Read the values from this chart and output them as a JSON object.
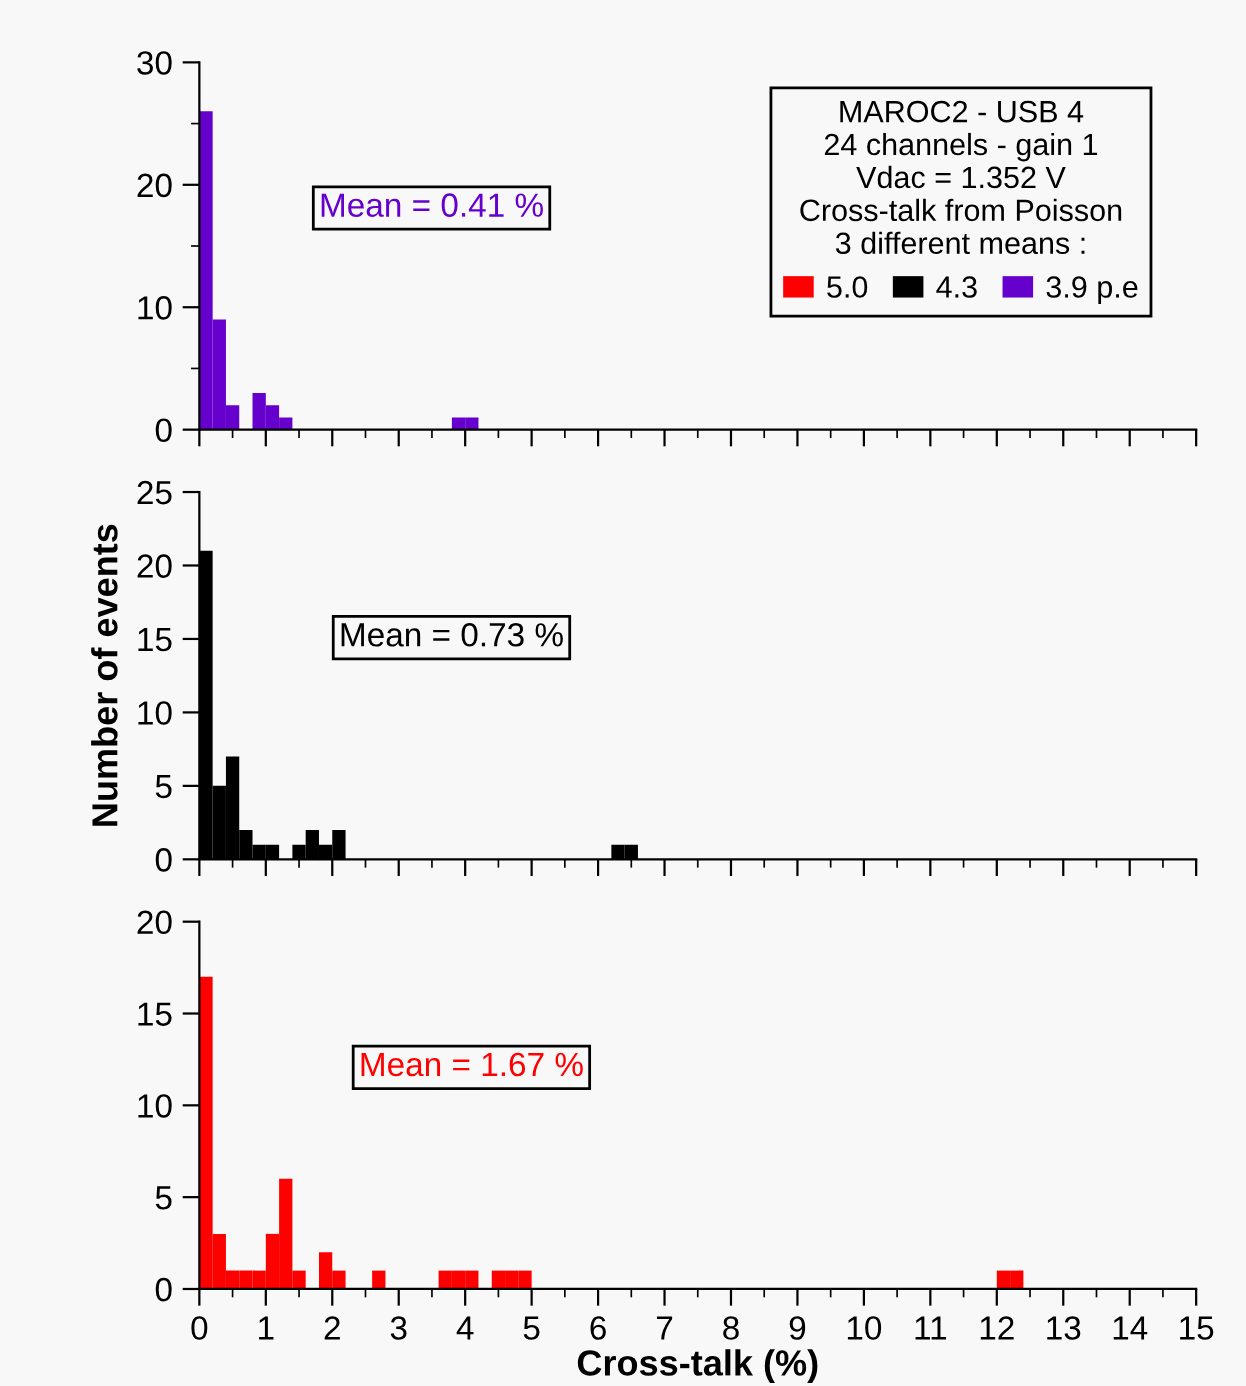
{
  "chart_data": [
    {
      "type": "histogram",
      "legend": "right",
      "legend_title": "MAROC2 - USB 4\n24 channels - gain 1\nVdac = 1.352 V\nCross-talk from Poisson\n3 different means :",
      "tick_labels": "y",
      "bins": [
        0,
        0.2,
        0.4,
        0.6,
        0.8,
        1,
        1.2,
        1.4,
        1.6,
        1.8,
        2,
        2.2,
        2.4,
        2.6,
        2.8,
        3,
        3.2,
        3.4,
        3.6,
        3.8,
        4,
        4.2,
        4.4,
        4.6,
        4.8,
        5,
        5.2,
        5.4,
        5.6,
        5.8,
        6,
        6.2,
        6.4,
        6.6,
        6.8,
        7,
        7.2,
        7.4,
        7.6,
        7.8,
        8,
        8.2,
        8.4,
        8.6,
        8.8,
        9,
        9.2,
        9.4,
        9.6,
        9.8,
        10,
        10.2,
        10.4,
        10.6,
        10.8,
        11,
        11.2,
        11.4,
        11.6,
        11.8,
        12,
        12.2,
        12.4,
        12.6,
        12.8,
        13,
        13.2,
        13.4,
        13.6,
        13.8,
        14,
        14.2,
        14.4,
        14.6,
        14.8,
        15
      ],
      "series": [
        {
          "name": "3.9 p.e",
          "color": "#6600cc",
          "values": [
            26,
            9,
            2,
            0,
            3,
            2,
            1,
            0,
            0,
            0,
            0,
            0,
            0,
            0,
            0,
            0,
            0,
            0,
            0,
            1,
            1,
            0,
            0,
            0,
            0,
            0,
            0,
            0,
            0,
            0,
            0,
            0,
            0,
            0,
            0,
            0,
            0,
            0,
            0,
            0,
            0,
            0,
            0,
            0,
            0,
            0,
            0,
            0,
            0,
            0,
            0,
            0,
            0,
            0,
            0,
            0,
            0,
            0,
            0,
            0,
            0,
            0,
            0,
            0,
            0,
            0,
            0,
            0,
            0,
            0,
            0,
            0,
            0,
            0,
            0
          ]
        }
      ],
      "annotations": [
        "Mean = 0.41 %"
      ],
      "xlim": [
        0,
        15
      ],
      "xticks": [
        0,
        1,
        2,
        3,
        4,
        5,
        6,
        7,
        8,
        9,
        10,
        11,
        12,
        13,
        14,
        15
      ],
      "ylim": [
        0,
        30
      ],
      "yticks": [
        0,
        {
          "value": 5,
          "label": null
        },
        10,
        {
          "value": 15,
          "label": null
        },
        20,
        {
          "value": 25,
          "label": null
        },
        30
      ]
    },
    {
      "type": "histogram",
      "ylabel": "Number of events",
      "tick_labels": "y",
      "bins": [
        0,
        0.2,
        0.4,
        0.6,
        0.8,
        1,
        1.2,
        1.4,
        1.6,
        1.8,
        2,
        2.2,
        2.4,
        2.6,
        2.8,
        3,
        3.2,
        3.4,
        3.6,
        3.8,
        4,
        4.2,
        4.4,
        4.6,
        4.8,
        5,
        5.2,
        5.4,
        5.6,
        5.8,
        6,
        6.2,
        6.4,
        6.6,
        6.8,
        7,
        7.2,
        7.4,
        7.6,
        7.8,
        8,
        8.2,
        8.4,
        8.6,
        8.8,
        9,
        9.2,
        9.4,
        9.6,
        9.8,
        10,
        10.2,
        10.4,
        10.6,
        10.8,
        11,
        11.2,
        11.4,
        11.6,
        11.8,
        12,
        12.2,
        12.4,
        12.6,
        12.8,
        13,
        13.2,
        13.4,
        13.6,
        13.8,
        14,
        14.2,
        14.4,
        14.6,
        14.8,
        15
      ],
      "series": [
        {
          "name": "4.3",
          "color": "#000000",
          "values": [
            21,
            5,
            7,
            2,
            1,
            1,
            0,
            1,
            2,
            1,
            2,
            0,
            0,
            0,
            0,
            0,
            0,
            0,
            0,
            0,
            0,
            0,
            0,
            0,
            0,
            0,
            0,
            0,
            0,
            0,
            0,
            1,
            1,
            0,
            0,
            0,
            0,
            0,
            0,
            0,
            0,
            0,
            0,
            0,
            0,
            0,
            0,
            0,
            0,
            0,
            0,
            0,
            0,
            0,
            0,
            0,
            0,
            0,
            0,
            0,
            0,
            0,
            0,
            0,
            0,
            0,
            0,
            0,
            0,
            0,
            0,
            0,
            0,
            0,
            0
          ]
        }
      ],
      "annotations": [
        "Mean = 0.73 %"
      ],
      "xlim": [
        0,
        15
      ],
      "xticks": [
        0,
        1,
        2,
        3,
        4,
        5,
        6,
        7,
        8,
        9,
        10,
        11,
        12,
        13,
        14,
        15
      ],
      "ylim": [
        0,
        25
      ],
      "yticks": [
        0,
        5,
        10,
        15,
        20,
        25
      ]
    },
    {
      "type": "histogram",
      "xlabel": "Cross-talk (%)",
      "bins": [
        0,
        0.2,
        0.4,
        0.6,
        0.8,
        1,
        1.2,
        1.4,
        1.6,
        1.8,
        2,
        2.2,
        2.4,
        2.6,
        2.8,
        3,
        3.2,
        3.4,
        3.6,
        3.8,
        4,
        4.2,
        4.4,
        4.6,
        4.8,
        5,
        5.2,
        5.4,
        5.6,
        5.8,
        6,
        6.2,
        6.4,
        6.6,
        6.8,
        7,
        7.2,
        7.4,
        7.6,
        7.8,
        8,
        8.2,
        8.4,
        8.6,
        8.8,
        9,
        9.2,
        9.4,
        9.6,
        9.8,
        10,
        10.2,
        10.4,
        10.6,
        10.8,
        11,
        11.2,
        11.4,
        11.6,
        11.8,
        12,
        12.2,
        12.4,
        12.6,
        12.8,
        13,
        13.2,
        13.4,
        13.6,
        13.8,
        14,
        14.2,
        14.4,
        14.6,
        14.8,
        15
      ],
      "series": [
        {
          "name": "5.0",
          "color": "#ff0000",
          "values": [
            17,
            3,
            1,
            1,
            1,
            3,
            6,
            1,
            0,
            2,
            1,
            0,
            0,
            1,
            0,
            0,
            0,
            0,
            1,
            1,
            1,
            0,
            1,
            1,
            1,
            0,
            0,
            0,
            0,
            0,
            0,
            0,
            0,
            0,
            0,
            0,
            0,
            0,
            0,
            0,
            0,
            0,
            0,
            0,
            0,
            0,
            0,
            0,
            0,
            0,
            0,
            0,
            0,
            0,
            0,
            0,
            0,
            0,
            0,
            0,
            1,
            1,
            0,
            0,
            0,
            0,
            0,
            0,
            0,
            0,
            0,
            0,
            0,
            0,
            0
          ]
        }
      ],
      "annotations": [
        "Mean = 1.67 %"
      ],
      "xlim": [
        0,
        15
      ],
      "xticks": [
        0,
        1,
        2,
        3,
        4,
        5,
        6,
        7,
        8,
        9,
        10,
        11,
        12,
        13,
        14,
        15
      ],
      "ylim": [
        0,
        20
      ],
      "yticks": [
        0,
        5,
        10,
        15,
        20
      ]
    }
  ]
}
